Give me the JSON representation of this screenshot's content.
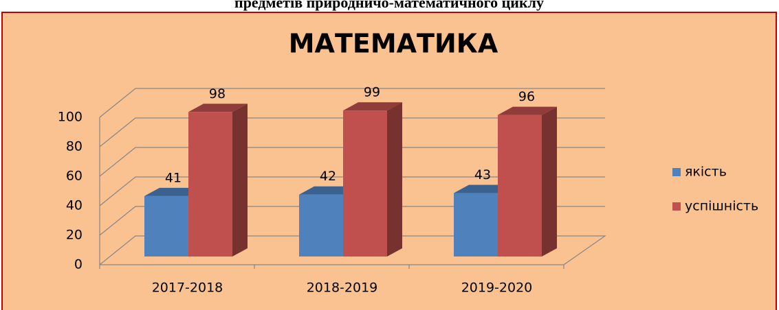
{
  "caption": "предметів природничо-математичного циклу",
  "chart_data": {
    "type": "bar",
    "title": "МАТЕМАТИКА",
    "categories": [
      "2017-2018",
      "2018-2019",
      "2019-2020"
    ],
    "series": [
      {
        "name": "якість",
        "color": "#4f81bd",
        "values": [
          41,
          42,
          43
        ]
      },
      {
        "name": "успішність",
        "color": "#c0504d",
        "values": [
          98,
          99,
          96
        ]
      }
    ],
    "ylim": [
      0,
      100
    ],
    "yticks": [
      0,
      20,
      40,
      60,
      80,
      100
    ],
    "grid": true,
    "legend": "right"
  }
}
